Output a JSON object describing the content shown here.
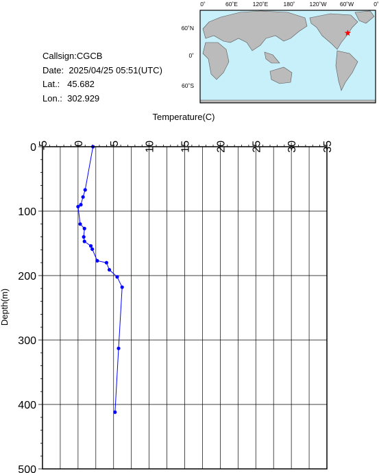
{
  "info": {
    "callsign_label": "Callsign:",
    "callsign": "CGCB",
    "date_label": "Date:",
    "date": "2025/04/25 05:51(UTC)",
    "lat_label": "Lat.:",
    "lat": "45.682",
    "lon_label": "Lon.:",
    "lon": "302.929"
  },
  "map": {
    "top_labels": [
      "0˚",
      "60˚E",
      "120˚E",
      "180˚",
      "120˚W",
      "60˚W",
      "0˚"
    ],
    "side_labels": [
      "60˚N",
      "0˚",
      "60˚S"
    ],
    "station_lat": 45.682,
    "station_lon": 302.929,
    "colors": {
      "ocean": "#c8f0fa",
      "land": "#bbbbbb",
      "marker": "#ff0000"
    }
  },
  "chart_data": {
    "type": "line",
    "xlabel": "Temperature(C)",
    "ylabel": "Depth(m)",
    "xlim": [
      -5,
      35
    ],
    "ylim": [
      500,
      0
    ],
    "x_ticks": [
      "-5",
      "0",
      "5",
      "10",
      "15",
      "20",
      "25",
      "30",
      "35"
    ],
    "y_ticks": [
      "0",
      "100",
      "200",
      "300",
      "400",
      "500"
    ],
    "grid": true,
    "series": [
      {
        "color": "#0000ff",
        "points": [
          [
            2.1,
            0
          ],
          [
            1.0,
            67
          ],
          [
            0.7,
            78
          ],
          [
            0.4,
            90
          ],
          [
            0.0,
            93
          ],
          [
            0.3,
            120
          ],
          [
            0.9,
            127
          ],
          [
            0.8,
            140
          ],
          [
            0.9,
            147
          ],
          [
            1.8,
            154
          ],
          [
            2.0,
            159
          ],
          [
            2.7,
            177
          ],
          [
            4.0,
            180
          ],
          [
            4.4,
            191
          ],
          [
            5.5,
            202
          ],
          [
            6.2,
            218
          ],
          [
            5.7,
            313
          ],
          [
            5.2,
            412
          ]
        ]
      }
    ]
  }
}
